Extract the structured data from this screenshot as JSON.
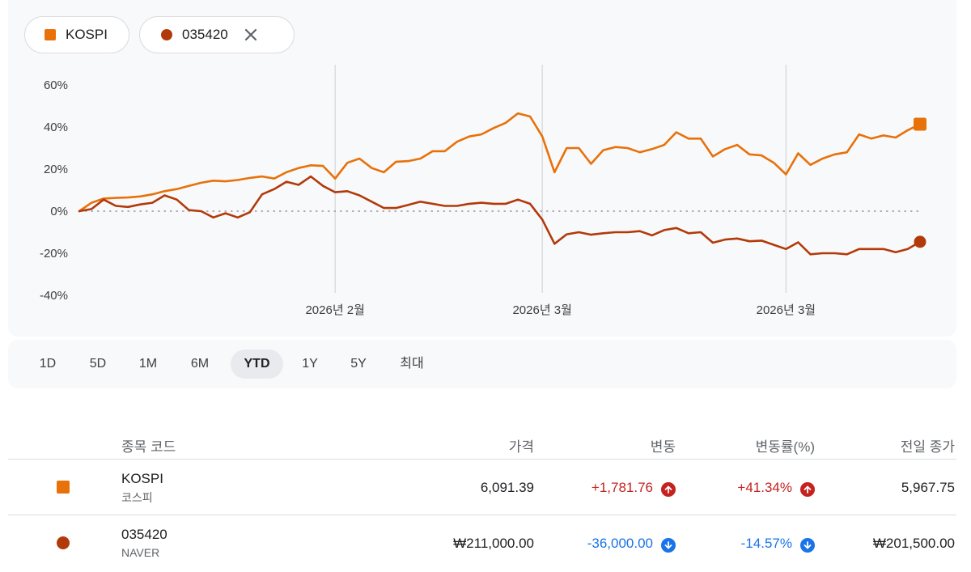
{
  "legend": {
    "kospi": {
      "label": "KOSPI",
      "color": "#e8710a"
    },
    "naver": {
      "label": "035420",
      "color": "#b23a0a",
      "close_icon": "close-icon"
    }
  },
  "ranges": [
    "1D",
    "5D",
    "1M",
    "6M",
    "YTD",
    "1Y",
    "5Y",
    "최대"
  ],
  "active_range": "YTD",
  "table": {
    "headers": {
      "symbol": "종목 코드",
      "price": "가격",
      "change": "변동",
      "pct": "변동률(%)",
      "prev": "전일 종가"
    },
    "rows": [
      {
        "symbol": "KOSPI",
        "name": "코스피",
        "price": "6,091.39",
        "change": "+1,781.76",
        "pct": "+41.34%",
        "prev": "5,967.75",
        "direction": "up",
        "marker": "square",
        "color": "#e8710a"
      },
      {
        "symbol": "035420",
        "name": "NAVER",
        "price": "₩211,000.00",
        "change": "-36,000.00",
        "pct": "-14.57%",
        "prev": "₩201,500.00",
        "direction": "down",
        "marker": "circle",
        "color": "#b23a0a"
      }
    ]
  },
  "chart_data": {
    "type": "line",
    "y_tick_labels": [
      "60%",
      "40%",
      "20%",
      "0%",
      "-20%",
      "-40%"
    ],
    "y_ticks": [
      60,
      40,
      20,
      0,
      -20,
      -40
    ],
    "ylim": [
      -40,
      60
    ],
    "x_tick_labels": [
      "2026년 2월",
      "2026년 3월",
      "2026년 3월"
    ],
    "x_tick_index": [
      21,
      38,
      58
    ],
    "grid": "vertical lines at x ticks, dotted zero line",
    "series": [
      {
        "name": "KOSPI",
        "color": "#e8710a",
        "marker": "square",
        "values": [
          0,
          4,
          6,
          6.3,
          6.5,
          7,
          8,
          9.5,
          10.5,
          12,
          13.5,
          14.5,
          14.2,
          14.8,
          15.8,
          16.5,
          15.5,
          18.5,
          20.5,
          21.8,
          21.5,
          15.5,
          23,
          25,
          20.5,
          18.5,
          23.5,
          23.8,
          25,
          28.5,
          28.5,
          33,
          35.5,
          36.5,
          39.5,
          42,
          46.5,
          45,
          35.5,
          18.5,
          30,
          30,
          22.5,
          29,
          30.5,
          30,
          28,
          29.5,
          31.5,
          37.5,
          34.5,
          34.5,
          26,
          29.5,
          31.5,
          27,
          26.5,
          23,
          17.5,
          27.5,
          22,
          25,
          27,
          28,
          36.5,
          34.5,
          36,
          35,
          38.5,
          41.34
        ]
      },
      {
        "name": "035420",
        "color": "#b23a0a",
        "marker": "circle",
        "values": [
          0,
          1,
          5.5,
          2.5,
          2,
          3.2,
          4,
          7.5,
          5.5,
          0.5,
          0,
          -3,
          -1,
          -3,
          -0.5,
          8,
          10.5,
          14,
          12.5,
          16.5,
          12,
          9,
          9.5,
          7.5,
          4.5,
          1.5,
          1.5,
          3,
          4.5,
          3.5,
          2.5,
          2.5,
          3.5,
          4,
          3.5,
          3.5,
          5.5,
          3.5,
          -4,
          -15.5,
          -11,
          -10,
          -11.2,
          -10.5,
          -10,
          -10,
          -9.5,
          -11.5,
          -9,
          -8,
          -10.5,
          -10,
          -15,
          -13.5,
          -13,
          -14.3,
          -14,
          -16,
          -18,
          -14.8,
          -20.5,
          -20,
          -20,
          -20.5,
          -18,
          -18,
          -18,
          -19.5,
          -18,
          -14.57
        ]
      }
    ]
  }
}
